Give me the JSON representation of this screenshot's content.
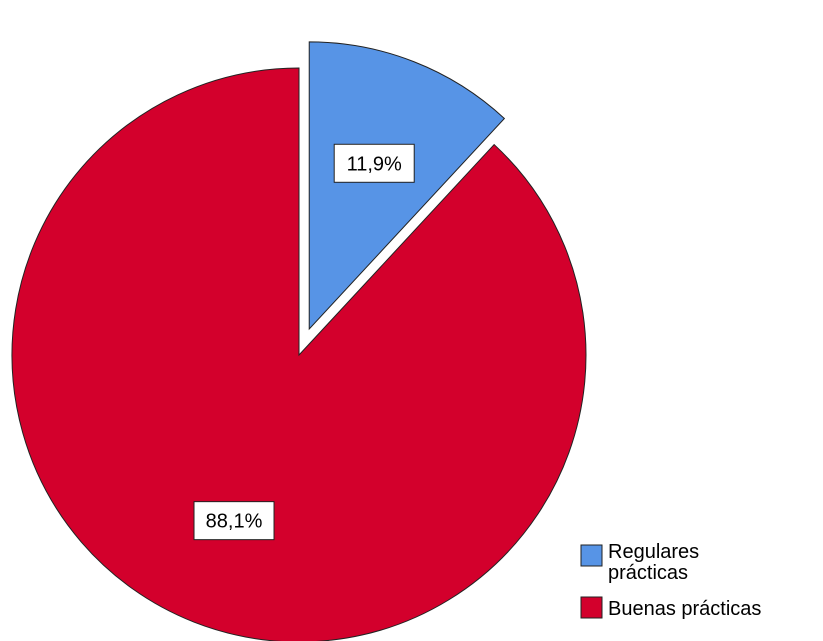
{
  "chart_data": {
    "type": "pie",
    "start_angle_deg": 0,
    "direction": "clockwise",
    "slices": [
      {
        "name": "Regulares prácticas",
        "legend_lines": [
          "Regulares",
          "prácticas"
        ],
        "value": 11.9,
        "label": "11,9%",
        "color": "#5794E6",
        "exploded": true
      },
      {
        "name": "Buenas prácticas",
        "legend_lines": [
          "Buenas prácticas"
        ],
        "value": 88.1,
        "label": "88,1%",
        "color": "#D3002C",
        "exploded": false
      }
    ],
    "legend_position": "bottom-right"
  }
}
